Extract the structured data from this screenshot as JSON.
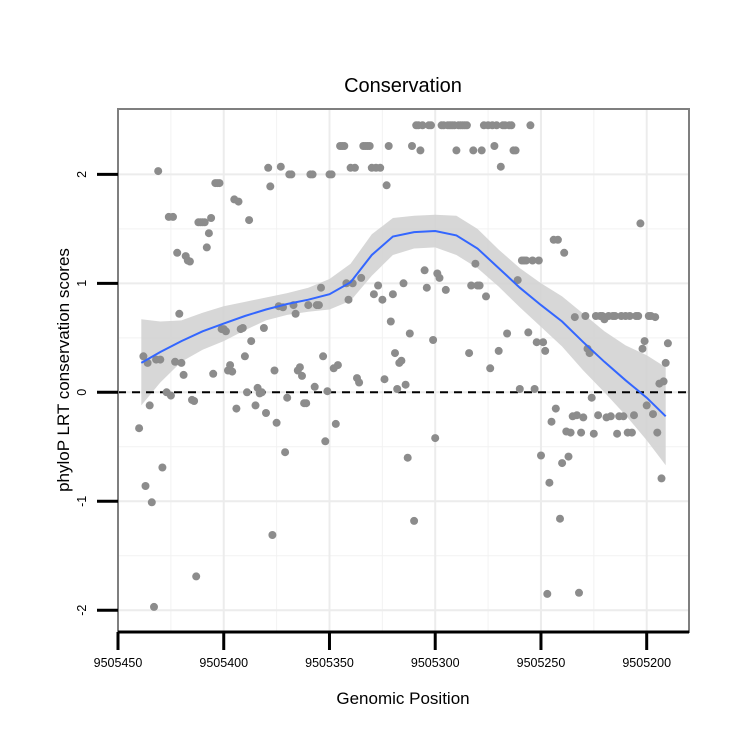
{
  "chart_data": {
    "type": "scatter",
    "title": "Conservation",
    "xlabel": "Genomic Position",
    "ylabel": "phyloP LRT conservation scores",
    "x_reversed": true,
    "xlim": [
      9505450,
      9505180
    ],
    "ylim": [
      -2.2,
      2.6
    ],
    "x_ticks": [
      9505450,
      9505400,
      9505350,
      9505300,
      9505250,
      9505200
    ],
    "x_tick_labels": [
      "9505450",
      "9505400",
      "9505350",
      "9505300",
      "9505250",
      "9505200"
    ],
    "x_minor_ticks": [
      9505425,
      9505375,
      9505325,
      9505275,
      9505225
    ],
    "y_ticks": [
      -2,
      -1,
      0,
      1,
      2
    ],
    "y_tick_labels": [
      "-2",
      "-1",
      "0",
      "1",
      "2"
    ],
    "y_minor_ticks": [
      -1.5,
      -0.5,
      0.5,
      1.5
    ],
    "reference_line": {
      "y": 0,
      "style": "dashed"
    },
    "colors": {
      "points": "#8c8c8c",
      "smooth_line": "#3366ff",
      "confidence_band": "#d3d3d3",
      "panel_border": "#7f7f7f",
      "reference_line": "#000000"
    },
    "points": [
      [
        9505440,
        -0.33
      ],
      [
        9505438,
        0.33
      ],
      [
        9505437,
        -0.86
      ],
      [
        9505436,
        0.27
      ],
      [
        9505435,
        -0.12
      ],
      [
        9505434,
        -1.01
      ],
      [
        9505433,
        -1.97
      ],
      [
        9505432,
        0.3
      ],
      [
        9505431,
        2.03
      ],
      [
        9505430,
        0.3
      ],
      [
        9505429,
        -0.69
      ],
      [
        9505427,
        0.0
      ],
      [
        9505426,
        1.61
      ],
      [
        9505425,
        -0.03
      ],
      [
        9505424,
        1.61
      ],
      [
        9505423,
        0.28
      ],
      [
        9505422,
        1.28
      ],
      [
        9505421,
        0.72
      ],
      [
        9505420,
        0.27
      ],
      [
        9505419,
        0.16
      ],
      [
        9505418,
        1.25
      ],
      [
        9505417,
        1.21
      ],
      [
        9505416,
        1.2
      ],
      [
        9505415,
        -0.07
      ],
      [
        9505414,
        -0.08
      ],
      [
        9505413,
        -1.69
      ],
      [
        9505412,
        1.56
      ],
      [
        9505411,
        1.56
      ],
      [
        9505410,
        1.56
      ],
      [
        9505409,
        1.56
      ],
      [
        9505408,
        1.33
      ],
      [
        9505407,
        1.46
      ],
      [
        9505406,
        1.6
      ],
      [
        9505405,
        0.17
      ],
      [
        9505404,
        1.92
      ],
      [
        9505403,
        1.92
      ],
      [
        9505402,
        1.92
      ],
      [
        9505401,
        0.58
      ],
      [
        9505400,
        0.58
      ],
      [
        9505399,
        0.56
      ],
      [
        9505398,
        0.2
      ],
      [
        9505397,
        0.25
      ],
      [
        9505396,
        0.19
      ],
      [
        9505395,
        1.77
      ],
      [
        9505394,
        -0.15
      ],
      [
        9505393,
        1.75
      ],
      [
        9505392,
        0.58
      ],
      [
        9505391,
        0.59
      ],
      [
        9505390,
        0.33
      ],
      [
        9505389,
        0.0
      ],
      [
        9505388,
        1.58
      ],
      [
        9505387,
        0.47
      ],
      [
        9505385,
        -0.12
      ],
      [
        9505384,
        0.04
      ],
      [
        9505383,
        -0.01
      ],
      [
        9505382,
        0.0
      ],
      [
        9505381,
        0.59
      ],
      [
        9505380,
        -0.19
      ],
      [
        9505379,
        2.06
      ],
      [
        9505378,
        1.89
      ],
      [
        9505377,
        -1.31
      ],
      [
        9505376,
        0.2
      ],
      [
        9505375,
        -0.28
      ],
      [
        9505374,
        0.79
      ],
      [
        9505373,
        2.07
      ],
      [
        9505372,
        0.78
      ],
      [
        9505371,
        -0.55
      ],
      [
        9505370,
        -0.05
      ],
      [
        9505369,
        2.0
      ],
      [
        9505368,
        2.0
      ],
      [
        9505367,
        0.8
      ],
      [
        9505366,
        0.72
      ],
      [
        9505365,
        0.2
      ],
      [
        9505364,
        0.23
      ],
      [
        9505363,
        0.15
      ],
      [
        9505362,
        -0.1
      ],
      [
        9505361,
        -0.1
      ],
      [
        9505360,
        0.8
      ],
      [
        9505359,
        2.0
      ],
      [
        9505358,
        2.0
      ],
      [
        9505357,
        0.05
      ],
      [
        9505356,
        0.8
      ],
      [
        9505355,
        0.8
      ],
      [
        9505354,
        0.96
      ],
      [
        9505353,
        0.33
      ],
      [
        9505352,
        -0.45
      ],
      [
        9505351,
        0.01
      ],
      [
        9505350,
        2.0
      ],
      [
        9505349,
        2.0
      ],
      [
        9505348,
        0.22
      ],
      [
        9505347,
        -0.29
      ],
      [
        9505346,
        0.25
      ],
      [
        9505345,
        2.26
      ],
      [
        9505344,
        2.26
      ],
      [
        9505343,
        2.26
      ],
      [
        9505342,
        1.0
      ],
      [
        9505341,
        0.85
      ],
      [
        9505340,
        2.06
      ],
      [
        9505339,
        1.0
      ],
      [
        9505338,
        2.06
      ],
      [
        9505337,
        0.13
      ],
      [
        9505336,
        0.09
      ],
      [
        9505335,
        1.05
      ],
      [
        9505334,
        2.26
      ],
      [
        9505333,
        2.26
      ],
      [
        9505332,
        2.26
      ],
      [
        9505331,
        2.26
      ],
      [
        9505330,
        2.06
      ],
      [
        9505329,
        0.9
      ],
      [
        9505328,
        2.06
      ],
      [
        9505327,
        0.98
      ],
      [
        9505326,
        2.06
      ],
      [
        9505325,
        0.85
      ],
      [
        9505324,
        0.12
      ],
      [
        9505323,
        1.9
      ],
      [
        9505322,
        2.26
      ],
      [
        9505321,
        0.65
      ],
      [
        9505320,
        0.9
      ],
      [
        9505319,
        0.36
      ],
      [
        9505318,
        0.03
      ],
      [
        9505317,
        0.27
      ],
      [
        9505316,
        0.29
      ],
      [
        9505315,
        1.0
      ],
      [
        9505314,
        0.07
      ],
      [
        9505313,
        -0.6
      ],
      [
        9505312,
        0.54
      ],
      [
        9505311,
        2.26
      ],
      [
        9505310,
        -1.18
      ],
      [
        9505309,
        2.45
      ],
      [
        9505308,
        2.45
      ],
      [
        9505307,
        2.22
      ],
      [
        9505306,
        2.45
      ],
      [
        9505305,
        1.12
      ],
      [
        9505304,
        0.96
      ],
      [
        9505303,
        2.45
      ],
      [
        9505302,
        2.45
      ],
      [
        9505301,
        0.48
      ],
      [
        9505300,
        -0.42
      ],
      [
        9505299,
        1.09
      ],
      [
        9505298,
        1.05
      ],
      [
        9505297,
        2.45
      ],
      [
        9505296,
        2.45
      ],
      [
        9505295,
        0.94
      ],
      [
        9505294,
        2.45
      ],
      [
        9505293,
        2.45
      ],
      [
        9505292,
        2.45
      ],
      [
        9505291,
        2.45
      ],
      [
        9505290,
        2.22
      ],
      [
        9505289,
        2.45
      ],
      [
        9505288,
        2.45
      ],
      [
        9505287,
        2.45
      ],
      [
        9505286,
        2.45
      ],
      [
        9505285,
        2.45
      ],
      [
        9505284,
        0.36
      ],
      [
        9505283,
        0.98
      ],
      [
        9505282,
        2.22
      ],
      [
        9505281,
        1.18
      ],
      [
        9505280,
        0.98
      ],
      [
        9505279,
        0.98
      ],
      [
        9505278,
        2.22
      ],
      [
        9505277,
        2.45
      ],
      [
        9505276,
        0.88
      ],
      [
        9505275,
        2.45
      ],
      [
        9505274,
        0.22
      ],
      [
        9505273,
        2.45
      ],
      [
        9505272,
        2.26
      ],
      [
        9505271,
        2.45
      ],
      [
        9505270,
        0.38
      ],
      [
        9505269,
        2.07
      ],
      [
        9505268,
        2.45
      ],
      [
        9505267,
        2.45
      ],
      [
        9505266,
        0.54
      ],
      [
        9505265,
        2.45
      ],
      [
        9505264,
        2.45
      ],
      [
        9505263,
        2.22
      ],
      [
        9505262,
        2.22
      ],
      [
        9505261,
        1.03
      ],
      [
        9505260,
        0.03
      ],
      [
        9505259,
        1.21
      ],
      [
        9505258,
        1.21
      ],
      [
        9505257,
        1.21
      ],
      [
        9505256,
        0.55
      ],
      [
        9505255,
        2.45
      ],
      [
        9505254,
        1.21
      ],
      [
        9505253,
        0.03
      ],
      [
        9505252,
        0.46
      ],
      [
        9505251,
        1.21
      ],
      [
        9505250,
        -0.58
      ],
      [
        9505249,
        0.46
      ],
      [
        9505248,
        0.38
      ],
      [
        9505247,
        -1.85
      ],
      [
        9505246,
        -0.83
      ],
      [
        9505245,
        -0.27
      ],
      [
        9505244,
        1.4
      ],
      [
        9505243,
        -0.15
      ],
      [
        9505242,
        1.4
      ],
      [
        9505241,
        -1.16
      ],
      [
        9505240,
        -0.65
      ],
      [
        9505239,
        1.28
      ],
      [
        9505238,
        -0.36
      ],
      [
        9505237,
        -0.59
      ],
      [
        9505236,
        -0.37
      ],
      [
        9505235,
        -0.22
      ],
      [
        9505234,
        0.69
      ],
      [
        9505233,
        -0.21
      ],
      [
        9505232,
        -1.84
      ],
      [
        9505231,
        -0.37
      ],
      [
        9505230,
        -0.23
      ],
      [
        9505229,
        0.7
      ],
      [
        9505228,
        0.4
      ],
      [
        9505227,
        0.36
      ],
      [
        9505226,
        -0.05
      ],
      [
        9505225,
        -0.38
      ],
      [
        9505224,
        0.7
      ],
      [
        9505223,
        -0.21
      ],
      [
        9505222,
        0.7
      ],
      [
        9505221,
        0.7
      ],
      [
        9505220,
        0.67
      ],
      [
        9505219,
        -0.23
      ],
      [
        9505218,
        0.7
      ],
      [
        9505217,
        -0.22
      ],
      [
        9505216,
        0.7
      ],
      [
        9505215,
        0.7
      ],
      [
        9505214,
        -0.38
      ],
      [
        9505213,
        -0.22
      ],
      [
        9505212,
        0.7
      ],
      [
        9505211,
        -0.22
      ],
      [
        9505210,
        0.7
      ],
      [
        9505209,
        -0.37
      ],
      [
        9505208,
        0.7
      ],
      [
        9505207,
        -0.37
      ],
      [
        9505206,
        -0.21
      ],
      [
        9505205,
        0.7
      ],
      [
        9505204,
        0.7
      ],
      [
        9505203,
        1.55
      ],
      [
        9505202,
        0.4
      ],
      [
        9505201,
        0.47
      ],
      [
        9505200,
        -0.12
      ],
      [
        9505199,
        0.7
      ],
      [
        9505198,
        0.7
      ],
      [
        9505197,
        -0.2
      ],
      [
        9505196,
        0.69
      ],
      [
        9505195,
        -0.37
      ],
      [
        9505194,
        0.08
      ],
      [
        9505193,
        -0.79
      ],
      [
        9505192,
        0.1
      ],
      [
        9505191,
        0.27
      ],
      [
        9505190,
        0.45
      ]
    ],
    "smooth": {
      "x": [
        9505439,
        9505430,
        9505420,
        9505410,
        9505400,
        9505390,
        9505380,
        9505370,
        9505360,
        9505350,
        9505340,
        9505330,
        9505320,
        9505310,
        9505300,
        9505290,
        9505280,
        9505270,
        9505260,
        9505250,
        9505240,
        9505230,
        9505220,
        9505210,
        9505200,
        9505191
      ],
      "y": [
        0.27,
        0.37,
        0.47,
        0.56,
        0.63,
        0.7,
        0.76,
        0.81,
        0.85,
        0.9,
        1.01,
        1.26,
        1.43,
        1.47,
        1.48,
        1.44,
        1.32,
        1.14,
        0.96,
        0.8,
        0.65,
        0.46,
        0.28,
        0.11,
        -0.05,
        -0.22
      ],
      "lower": [
        -0.12,
        0.09,
        0.28,
        0.39,
        0.47,
        0.57,
        0.66,
        0.71,
        0.74,
        0.76,
        0.84,
        1.07,
        1.26,
        1.32,
        1.33,
        1.26,
        1.14,
        0.97,
        0.78,
        0.6,
        0.42,
        0.2,
        0.0,
        -0.21,
        -0.44,
        -0.67
      ],
      "upper": [
        0.67,
        0.65,
        0.66,
        0.73,
        0.79,
        0.83,
        0.87,
        0.91,
        0.96,
        1.04,
        1.18,
        1.45,
        1.6,
        1.62,
        1.63,
        1.62,
        1.5,
        1.31,
        1.14,
        1.0,
        0.88,
        0.72,
        0.56,
        0.43,
        0.34,
        0.23
      ]
    }
  }
}
